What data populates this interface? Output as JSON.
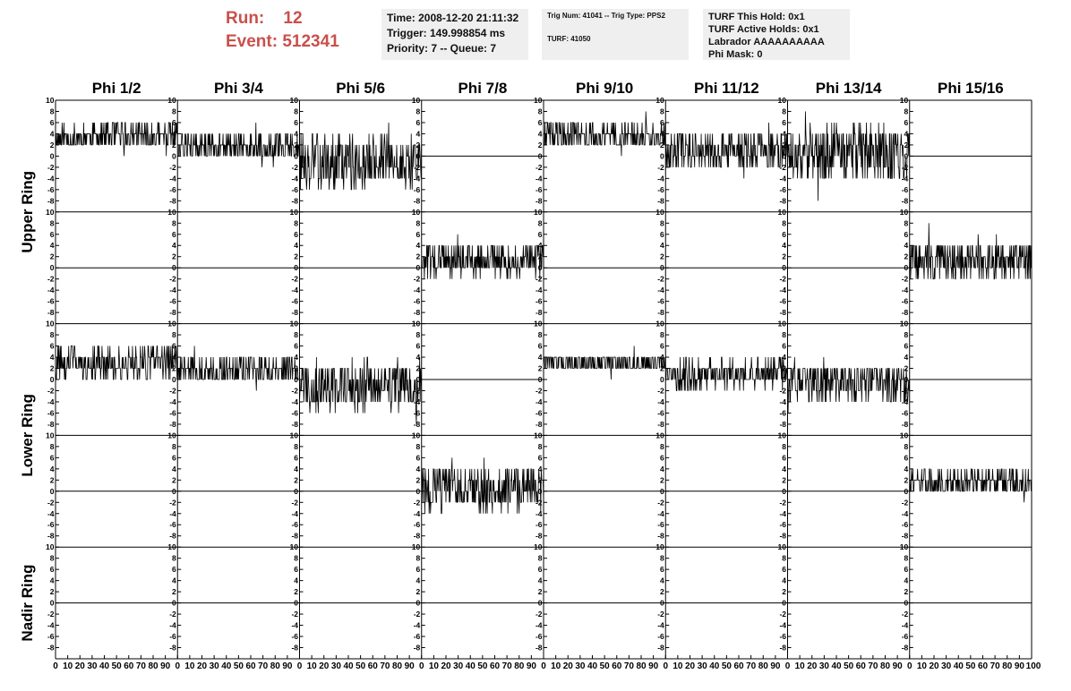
{
  "header": {
    "run_label": "Run:",
    "run_value": "12",
    "event_label": "Event:",
    "event_value": "512341"
  },
  "panels": {
    "time": [
      "Time: 2008-12-20 21:11:32",
      "Trigger: 149.998854 ms",
      "Priority: 7 -- Queue: 7"
    ],
    "trig": [
      "Trig Num: 41041 -- Trig Type: PPS2",
      "TURF: 41050"
    ],
    "turf": [
      "TURF This Hold: 0x1",
      "TURF Active Holds: 0x1",
      "Labrador AAAAAAAAAA",
      "Phi Mask: 0"
    ]
  },
  "colors": {
    "header_text": "#c8504c",
    "panel_bg": "#efefef",
    "trace": "#000000"
  },
  "chart_data": {
    "type": "line",
    "columns": [
      "Phi 1/2",
      "Phi 3/4",
      "Phi 5/6",
      "Phi 7/8",
      "Phi 9/10",
      "Phi 11/12",
      "Phi 13/14",
      "Phi 15/16"
    ],
    "row_groups": [
      "Upper Ring",
      "Lower Ring",
      "Nadir Ring"
    ],
    "ylim": [
      -10,
      10
    ],
    "y_ticks": [
      "10",
      "8",
      "6",
      "4",
      "2",
      "0",
      "-2",
      "-4",
      "-6",
      "-8"
    ],
    "xlim": [
      0,
      100
    ],
    "x_ticks": [
      "0",
      "10",
      "20",
      "30",
      "40",
      "50",
      "60",
      "70",
      "80",
      "90"
    ],
    "x_end_label": "100",
    "trace_rows": [
      {
        "ring": "Upper Ring",
        "traces": [
          {
            "column": "Phi 1/2",
            "mean": 3.5,
            "amp": 2.5,
            "seed": 11
          },
          {
            "column": "Phi 3/4",
            "mean": 1.5,
            "amp": 2.5,
            "seed": 12
          },
          {
            "column": "Phi 5/6",
            "mean": -1.0,
            "amp": 4.5,
            "seed": 13
          },
          {
            "column": "Phi 7/8",
            "flat": true
          },
          {
            "column": "Phi 9/10",
            "mean": 3.5,
            "amp": 2.5,
            "seed": 15
          },
          {
            "column": "Phi 11/12",
            "mean": 1.0,
            "amp": 3.5,
            "seed": 16
          },
          {
            "column": "Phi 13/14",
            "mean": 0.5,
            "amp": 5.0,
            "seed": 17
          },
          {
            "column": "Phi 15/16",
            "flat": true
          }
        ]
      },
      {
        "ring": "Upper Ring",
        "traces": [
          {
            "column": "Phi 1/2",
            "flat": true
          },
          {
            "column": "Phi 3/4",
            "flat": true
          },
          {
            "column": "Phi 5/6",
            "flat": true
          },
          {
            "column": "Phi 7/8",
            "mean": 1.5,
            "amp": 3.0,
            "seed": 24
          },
          {
            "column": "Phi 9/10",
            "flat": true
          },
          {
            "column": "Phi 11/12",
            "flat": true
          },
          {
            "column": "Phi 13/14",
            "flat": true
          },
          {
            "column": "Phi 15/16",
            "mean": 1.5,
            "amp": 3.5,
            "seed": 28
          }
        ]
      },
      {
        "ring": "Lower Ring",
        "traces": [
          {
            "column": "Phi 1/2",
            "mean": 3.0,
            "amp": 3.0,
            "seed": 31
          },
          {
            "column": "Phi 3/4",
            "mean": 1.5,
            "amp": 2.5,
            "seed": 32
          },
          {
            "column": "Phi 5/6",
            "mean": -1.0,
            "amp": 4.5,
            "seed": 33
          },
          {
            "column": "Phi 7/8",
            "flat": true
          },
          {
            "column": "Phi 9/10",
            "mean": 3.0,
            "amp": 2.0,
            "seed": 35
          },
          {
            "column": "Phi 11/12",
            "mean": 1.0,
            "amp": 2.5,
            "seed": 36
          },
          {
            "column": "Phi 13/14",
            "mean": -0.5,
            "amp": 3.5,
            "seed": 37
          },
          {
            "column": "Phi 15/16",
            "flat": true
          }
        ]
      },
      {
        "ring": "Lower Ring",
        "traces": [
          {
            "column": "Phi 1/2",
            "flat": true
          },
          {
            "column": "Phi 3/4",
            "flat": true
          },
          {
            "column": "Phi 5/6",
            "flat": true
          },
          {
            "column": "Phi 7/8",
            "mean": 0.5,
            "amp": 4.0,
            "seed": 44
          },
          {
            "column": "Phi 9/10",
            "flat": true
          },
          {
            "column": "Phi 11/12",
            "flat": true
          },
          {
            "column": "Phi 13/14",
            "flat": true
          },
          {
            "column": "Phi 15/16",
            "mean": 1.5,
            "amp": 2.5,
            "seed": 48
          }
        ]
      },
      {
        "ring": "Nadir Ring",
        "traces": [
          {
            "column": "Phi 1/2",
            "flat": true
          },
          {
            "column": "Phi 3/4",
            "flat": true
          },
          {
            "column": "Phi 5/6",
            "flat": true
          },
          {
            "column": "Phi 7/8",
            "flat": true
          },
          {
            "column": "Phi 9/10",
            "flat": true
          },
          {
            "column": "Phi 11/12",
            "flat": true
          },
          {
            "column": "Phi 13/14",
            "flat": true
          },
          {
            "column": "Phi 15/16",
            "flat": true
          }
        ]
      }
    ]
  }
}
